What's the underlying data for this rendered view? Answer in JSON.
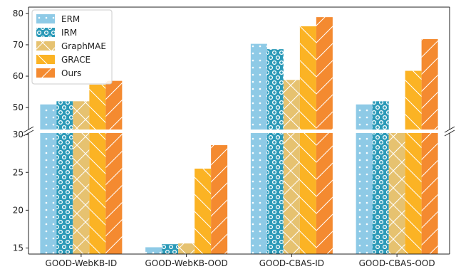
{
  "chart_data": {
    "type": "bar",
    "broken_axis": true,
    "categories": [
      "GOOD-WebKB-ID",
      "GOOD-WebKB-OOD",
      "GOOD-CBAS-ID",
      "GOOD-CBAS-OOD"
    ],
    "series": [
      {
        "name": "ERM",
        "values": [
          51.0,
          15.1,
          70.3,
          51.0
        ],
        "color": "#8ecae6",
        "pattern": "dots"
      },
      {
        "name": "IRM",
        "values": [
          52.0,
          15.5,
          68.6,
          52.0
        ],
        "color": "#2b9ab8",
        "pattern": "circles"
      },
      {
        "name": "GraphMAE",
        "values": [
          52.0,
          15.6,
          58.8,
          31.9
        ],
        "color": "#e6c270",
        "pattern": "crosshatch"
      },
      {
        "name": "GRACE",
        "values": [
          57.3,
          25.5,
          75.9,
          61.7
        ],
        "color": "#fbb324",
        "pattern": "backslash"
      },
      {
        "name": "Ours",
        "values": [
          58.5,
          28.6,
          78.8,
          71.8
        ],
        "color": "#f48a30",
        "pattern": "slash"
      }
    ],
    "upper_yticks": [
      50,
      60,
      70,
      80
    ],
    "lower_yticks": [
      15,
      20,
      25,
      30
    ],
    "upper_ylim": [
      43,
      82
    ],
    "lower_ylim": [
      14.2,
      30.2
    ],
    "legend_position": "top-left",
    "grid": false
  }
}
